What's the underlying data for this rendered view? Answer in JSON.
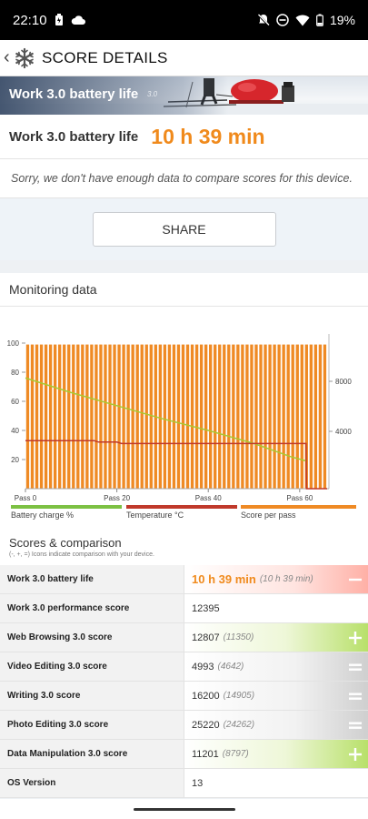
{
  "status": {
    "time": "22:10",
    "battery": "19%"
  },
  "appbar": {
    "title": "SCORE DETAILS"
  },
  "banner": {
    "title": "Work 3.0 battery life",
    "version": "3.0"
  },
  "result": {
    "label": "Work 3.0 battery life",
    "value": "10 h 39 min"
  },
  "notice": "Sorry, we don't have enough data to compare scores for this device.",
  "share_label": "SHARE",
  "monitoring": {
    "title": "Monitoring data",
    "legend": [
      {
        "label": "Battery charge %",
        "color": "#7cc143"
      },
      {
        "label": "Temperature °C",
        "color": "#c0392b"
      },
      {
        "label": "Score per pass",
        "color": "#ef8a24"
      }
    ]
  },
  "chart_data": {
    "type": "bar",
    "left_axis_ticks": [
      "100",
      "80",
      "60",
      "40",
      "20"
    ],
    "right_axis_ticks": [
      "8000",
      "4000"
    ],
    "x_ticks": [
      "Pass 0",
      "Pass 20",
      "Pass 40",
      "Pass 60"
    ],
    "pass_count": 66,
    "series": [
      {
        "name": "Score per pass",
        "kind": "bar",
        "value_pct": 99,
        "color": "#ef8a24"
      },
      {
        "name": "Battery charge %",
        "kind": "line",
        "color": "#a8c934",
        "x": [
          0,
          5,
          10,
          20,
          30,
          40,
          50,
          58,
          61.5
        ],
        "y": [
          76,
          71,
          66,
          57,
          48,
          40,
          31,
          22,
          19
        ]
      },
      {
        "name": "Temperature °C",
        "kind": "line",
        "color": "#c0392b",
        "x": [
          0,
          15,
          16,
          20,
          21,
          61.4,
          61.5,
          66
        ],
        "y": [
          33,
          33,
          32,
          32,
          31,
          31,
          0,
          0
        ]
      }
    ],
    "ylim": [
      0,
      100
    ]
  },
  "scores": {
    "title": "Scores & comparison",
    "subtitle": "(-, +, =) Icons indicate comparison with your device.",
    "rows": [
      {
        "name": "Work 3.0 battery life",
        "value": "10 h 39 min",
        "compare": "(10 h 39 min)",
        "indicator": "minus",
        "style": "main"
      },
      {
        "name": "Work 3.0 performance score",
        "value": "12395",
        "compare": "",
        "indicator": "none",
        "style": "plain"
      },
      {
        "name": "Web Browsing 3.0 score",
        "value": "12807",
        "compare": "(11350)",
        "indicator": "plus",
        "style": "plus"
      },
      {
        "name": "Video Editing 3.0 score",
        "value": "4993",
        "compare": "(4642)",
        "indicator": "equal",
        "style": "equal"
      },
      {
        "name": "Writing 3.0 score",
        "value": "16200",
        "compare": "(14905)",
        "indicator": "equal",
        "style": "equal"
      },
      {
        "name": "Photo Editing 3.0 score",
        "value": "25220",
        "compare": "(24262)",
        "indicator": "equal",
        "style": "equal"
      },
      {
        "name": "Data Manipulation 3.0 score",
        "value": "11201",
        "compare": "(8797)",
        "indicator": "plus",
        "style": "plus"
      },
      {
        "name": "OS Version",
        "value": "13",
        "compare": "",
        "indicator": "none",
        "style": "plain"
      }
    ]
  }
}
